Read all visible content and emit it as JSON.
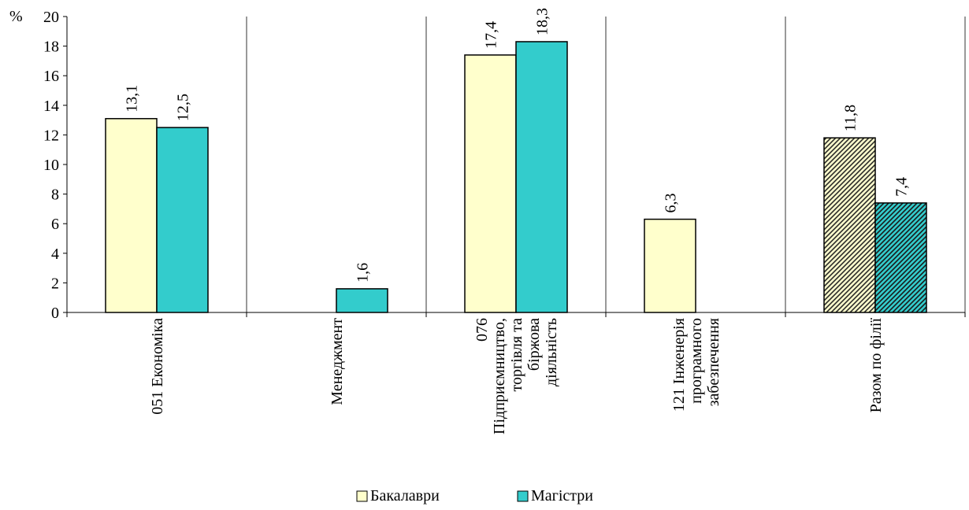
{
  "chart_data": {
    "type": "bar",
    "ylabel": "%",
    "ylim": [
      0,
      20
    ],
    "yticks": [
      0,
      2,
      4,
      6,
      8,
      10,
      12,
      14,
      16,
      18,
      20
    ],
    "ytick_labels": [
      "0",
      "2",
      "4",
      "6",
      "8",
      "10",
      "12",
      "14",
      "16",
      "18",
      "20"
    ],
    "categories": [
      [
        "051 Економіка"
      ],
      [
        "Менеджмент"
      ],
      [
        "076",
        "Підприємництво,",
        "торгівля та",
        "біржова",
        "діяльність"
      ],
      [
        "121 Інженерія",
        "програмного",
        "забезпечення"
      ],
      [
        "Разом по філії"
      ]
    ],
    "series": [
      {
        "name": "Бакалаври",
        "color": "#FFFFCC",
        "values": [
          13.1,
          null,
          17.4,
          6.3,
          11.8
        ],
        "labels": [
          "13,1",
          "",
          "17,4",
          "6,3",
          "11,8"
        ]
      },
      {
        "name": "Магістри",
        "color": "#33CCCC",
        "values": [
          12.5,
          1.6,
          18.3,
          null,
          7.4
        ],
        "labels": [
          "12,5",
          "1,6",
          "18,3",
          "",
          "7,4"
        ]
      }
    ],
    "hatched_categories": [
      4
    ],
    "grid": "vertical category separators",
    "legend_position": "bottom-center"
  }
}
